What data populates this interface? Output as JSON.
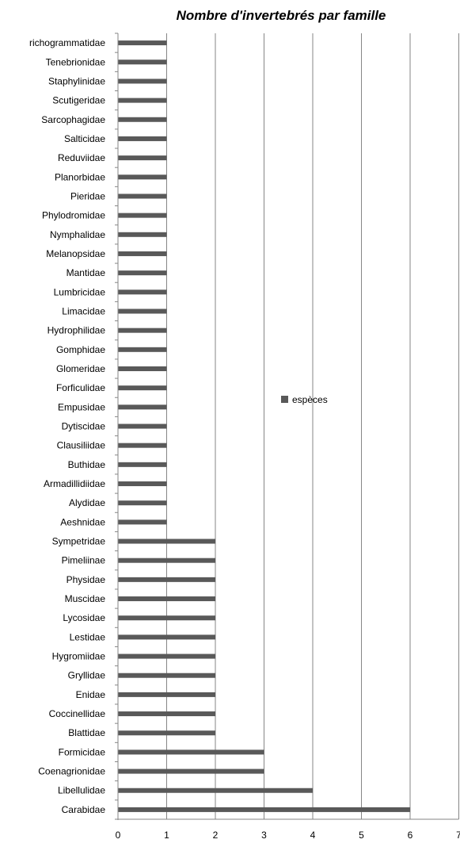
{
  "chart_data": {
    "type": "bar",
    "orientation": "horizontal",
    "title": "Nombre d'invertebrés par famille",
    "xlabel": "",
    "ylabel": "",
    "xlim": [
      0,
      7
    ],
    "x_ticks": [
      "0",
      "1",
      "2",
      "3",
      "4",
      "5",
      "6",
      "7"
    ],
    "grid": true,
    "legend_position": "center-right",
    "bar_color": "#595959",
    "grid_color": "#868686",
    "categories": [
      "Carabidae",
      "Libellulidae",
      "Coenagrionidae",
      "Formicidae",
      "Blattidae",
      "Coccinellidae",
      "Enidae",
      "Gryllidae",
      "Hygromiidae",
      "Lestidae",
      "Lycosidae",
      "Muscidae",
      "Physidae",
      "Pimeliinae",
      "Sympetridae",
      "Aeshnidae",
      "Alydidae",
      "Armadillidiidae",
      "Buthidae",
      "Clausiliidae",
      "Dytiscidae",
      "Empusidae",
      "Forficulidae",
      "Glomeridae",
      "Gomphidae",
      "Hydrophilidae",
      "Limacidae",
      "Lumbricidae",
      "Mantidae",
      "Melanopsidae",
      "Nymphalidae",
      "Phylodromidae",
      "Pieridae",
      "Planorbidae",
      "Reduviidae",
      "Salticidae",
      "Sarcophagidae",
      "Scutigeridae",
      "Staphylinidae",
      "Tenebrionidae",
      "richogrammatidae"
    ],
    "series": [
      {
        "name": "espèces",
        "values": [
          6,
          4,
          3,
          3,
          2,
          2,
          2,
          2,
          2,
          2,
          2,
          2,
          2,
          2,
          2,
          1,
          1,
          1,
          1,
          1,
          1,
          1,
          1,
          1,
          1,
          1,
          1,
          1,
          1,
          1,
          1,
          1,
          1,
          1,
          1,
          1,
          1,
          1,
          1,
          1,
          1
        ]
      }
    ]
  }
}
